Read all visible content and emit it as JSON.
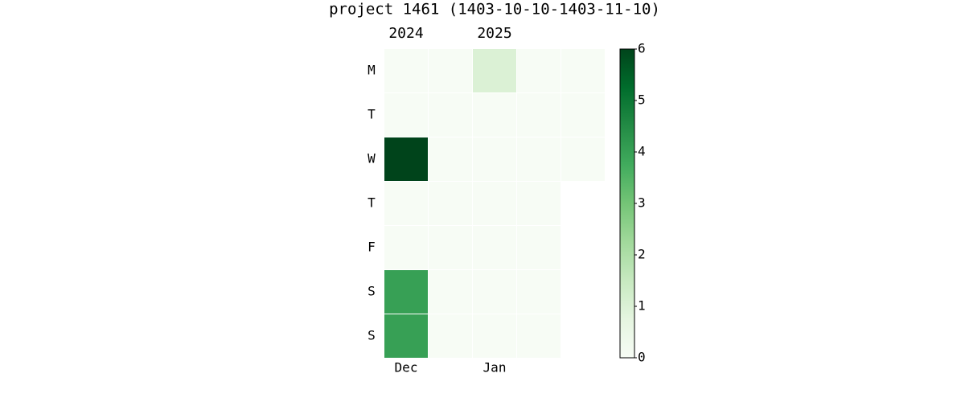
{
  "chart_data": {
    "type": "heatmap",
    "title": "project 1461 (1403-10-10-1403-11-10)",
    "rows": [
      "M",
      "T",
      "W",
      "T",
      "F",
      "S",
      "S"
    ],
    "months": [
      "Dec",
      null,
      "Jan",
      null,
      null
    ],
    "years": [
      "2024",
      null,
      "2025",
      null,
      null
    ],
    "values": [
      [
        0,
        0,
        1,
        0,
        0
      ],
      [
        0,
        0,
        0,
        0,
        0
      ],
      [
        6,
        0,
        0,
        0,
        0
      ],
      [
        0,
        0,
        0,
        0,
        null
      ],
      [
        0,
        0,
        0,
        0,
        null
      ],
      [
        4,
        0,
        0,
        0,
        null
      ],
      [
        4,
        0,
        0,
        0,
        null
      ]
    ],
    "colors": [
      "#f7fcf5",
      "#e5f5e0",
      "#c7e9c0",
      "#a1d99b",
      "#74c476",
      "#41ab5d",
      "#238b45",
      "#006d2c",
      "#00441b"
    ],
    "zlim": [
      0,
      6
    ],
    "zticks": [
      0,
      1,
      2,
      3,
      4,
      5,
      6
    ]
  }
}
